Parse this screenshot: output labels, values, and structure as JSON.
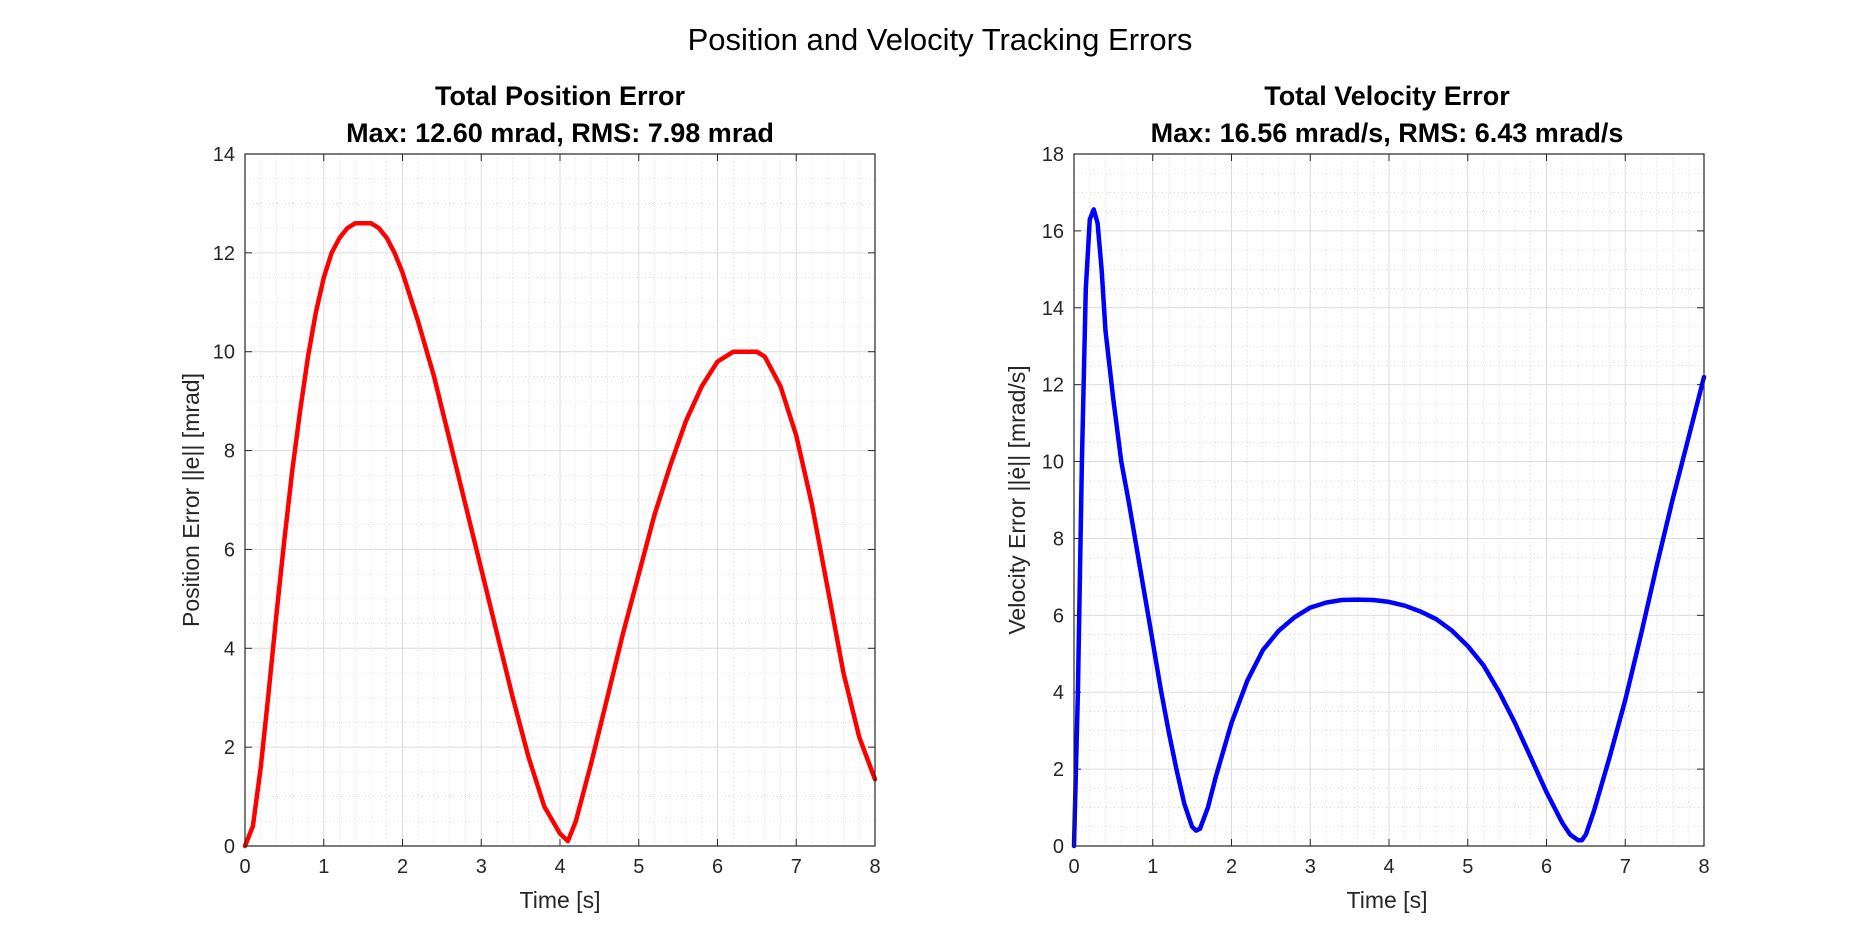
{
  "figure": {
    "suptitle": "Position and Velocity Tracking Errors"
  },
  "chart_data": [
    {
      "type": "line",
      "title": "Total Position Error",
      "subtitle": "Max: 12.60 mrad, RMS: 7.98 mrad",
      "xlabel": "Time [s]",
      "ylabel": "Position Error ||e|| [mrad]",
      "xlim": [
        0,
        8
      ],
      "ylim": [
        0,
        14
      ],
      "xticks": [
        0,
        1,
        2,
        3,
        4,
        5,
        6,
        7,
        8
      ],
      "yticks": [
        0,
        2,
        4,
        6,
        8,
        10,
        12,
        14
      ],
      "grid": true,
      "minor_grid": true,
      "series": [
        {
          "color": "#ff0000",
          "x": [
            0,
            0.1,
            0.2,
            0.3,
            0.4,
            0.5,
            0.6,
            0.7,
            0.8,
            0.9,
            1.0,
            1.1,
            1.2,
            1.3,
            1.4,
            1.5,
            1.6,
            1.7,
            1.8,
            1.9,
            2.0,
            2.2,
            2.4,
            2.6,
            2.8,
            3.0,
            3.2,
            3.4,
            3.6,
            3.8,
            4.0,
            4.1,
            4.2,
            4.4,
            4.6,
            4.8,
            5.0,
            5.2,
            5.4,
            5.6,
            5.8,
            6.0,
            6.2,
            6.4,
            6.5,
            6.6,
            6.8,
            7.0,
            7.2,
            7.4,
            7.6,
            7.8,
            8.0
          ],
          "y": [
            0.0,
            0.4,
            1.6,
            3.1,
            4.7,
            6.2,
            7.6,
            8.8,
            9.9,
            10.8,
            11.5,
            12.0,
            12.3,
            12.5,
            12.6,
            12.6,
            12.6,
            12.5,
            12.3,
            12.0,
            11.6,
            10.6,
            9.5,
            8.2,
            6.9,
            5.6,
            4.3,
            3.0,
            1.8,
            0.8,
            0.25,
            0.1,
            0.5,
            1.7,
            3.0,
            4.3,
            5.5,
            6.7,
            7.7,
            8.6,
            9.3,
            9.8,
            10.0,
            10.0,
            10.0,
            9.9,
            9.3,
            8.3,
            6.9,
            5.2,
            3.5,
            2.2,
            1.35
          ]
        }
      ]
    },
    {
      "type": "line",
      "title": "Total Velocity Error",
      "subtitle": "Max: 16.56 mrad/s, RMS: 6.43 mrad/s",
      "xlabel": "Time [s]",
      "ylabel": "Velocity Error ||ė|| [mrad/s]",
      "xlim": [
        0,
        8
      ],
      "ylim": [
        0,
        18
      ],
      "xticks": [
        0,
        1,
        2,
        3,
        4,
        5,
        6,
        7,
        8
      ],
      "yticks": [
        0,
        2,
        4,
        6,
        8,
        10,
        12,
        14,
        16,
        18
      ],
      "grid": true,
      "minor_grid": true,
      "series": [
        {
          "color": "#0000ff",
          "x": [
            0,
            0.05,
            0.1,
            0.15,
            0.2,
            0.25,
            0.3,
            0.35,
            0.4,
            0.5,
            0.6,
            0.7,
            0.8,
            0.9,
            1.0,
            1.1,
            1.2,
            1.3,
            1.4,
            1.5,
            1.55,
            1.6,
            1.7,
            1.8,
            2.0,
            2.2,
            2.4,
            2.6,
            2.8,
            3.0,
            3.2,
            3.4,
            3.6,
            3.8,
            4.0,
            4.2,
            4.4,
            4.6,
            4.8,
            5.0,
            5.2,
            5.4,
            5.6,
            5.8,
            6.0,
            6.2,
            6.3,
            6.4,
            6.45,
            6.5,
            6.6,
            6.8,
            7.0,
            7.2,
            7.4,
            7.6,
            7.8,
            8.0
          ],
          "y": [
            0.0,
            4.0,
            10.0,
            14.5,
            16.3,
            16.56,
            16.2,
            15.0,
            13.4,
            11.6,
            10.0,
            8.9,
            7.7,
            6.5,
            5.3,
            4.1,
            3.0,
            2.0,
            1.1,
            0.5,
            0.4,
            0.45,
            1.0,
            1.8,
            3.2,
            4.3,
            5.1,
            5.6,
            5.95,
            6.2,
            6.33,
            6.4,
            6.41,
            6.4,
            6.35,
            6.25,
            6.1,
            5.9,
            5.6,
            5.2,
            4.7,
            4.0,
            3.2,
            2.3,
            1.4,
            0.6,
            0.3,
            0.15,
            0.15,
            0.3,
            0.9,
            2.3,
            3.8,
            5.5,
            7.3,
            9.0,
            10.6,
            12.2
          ]
        }
      ]
    }
  ]
}
